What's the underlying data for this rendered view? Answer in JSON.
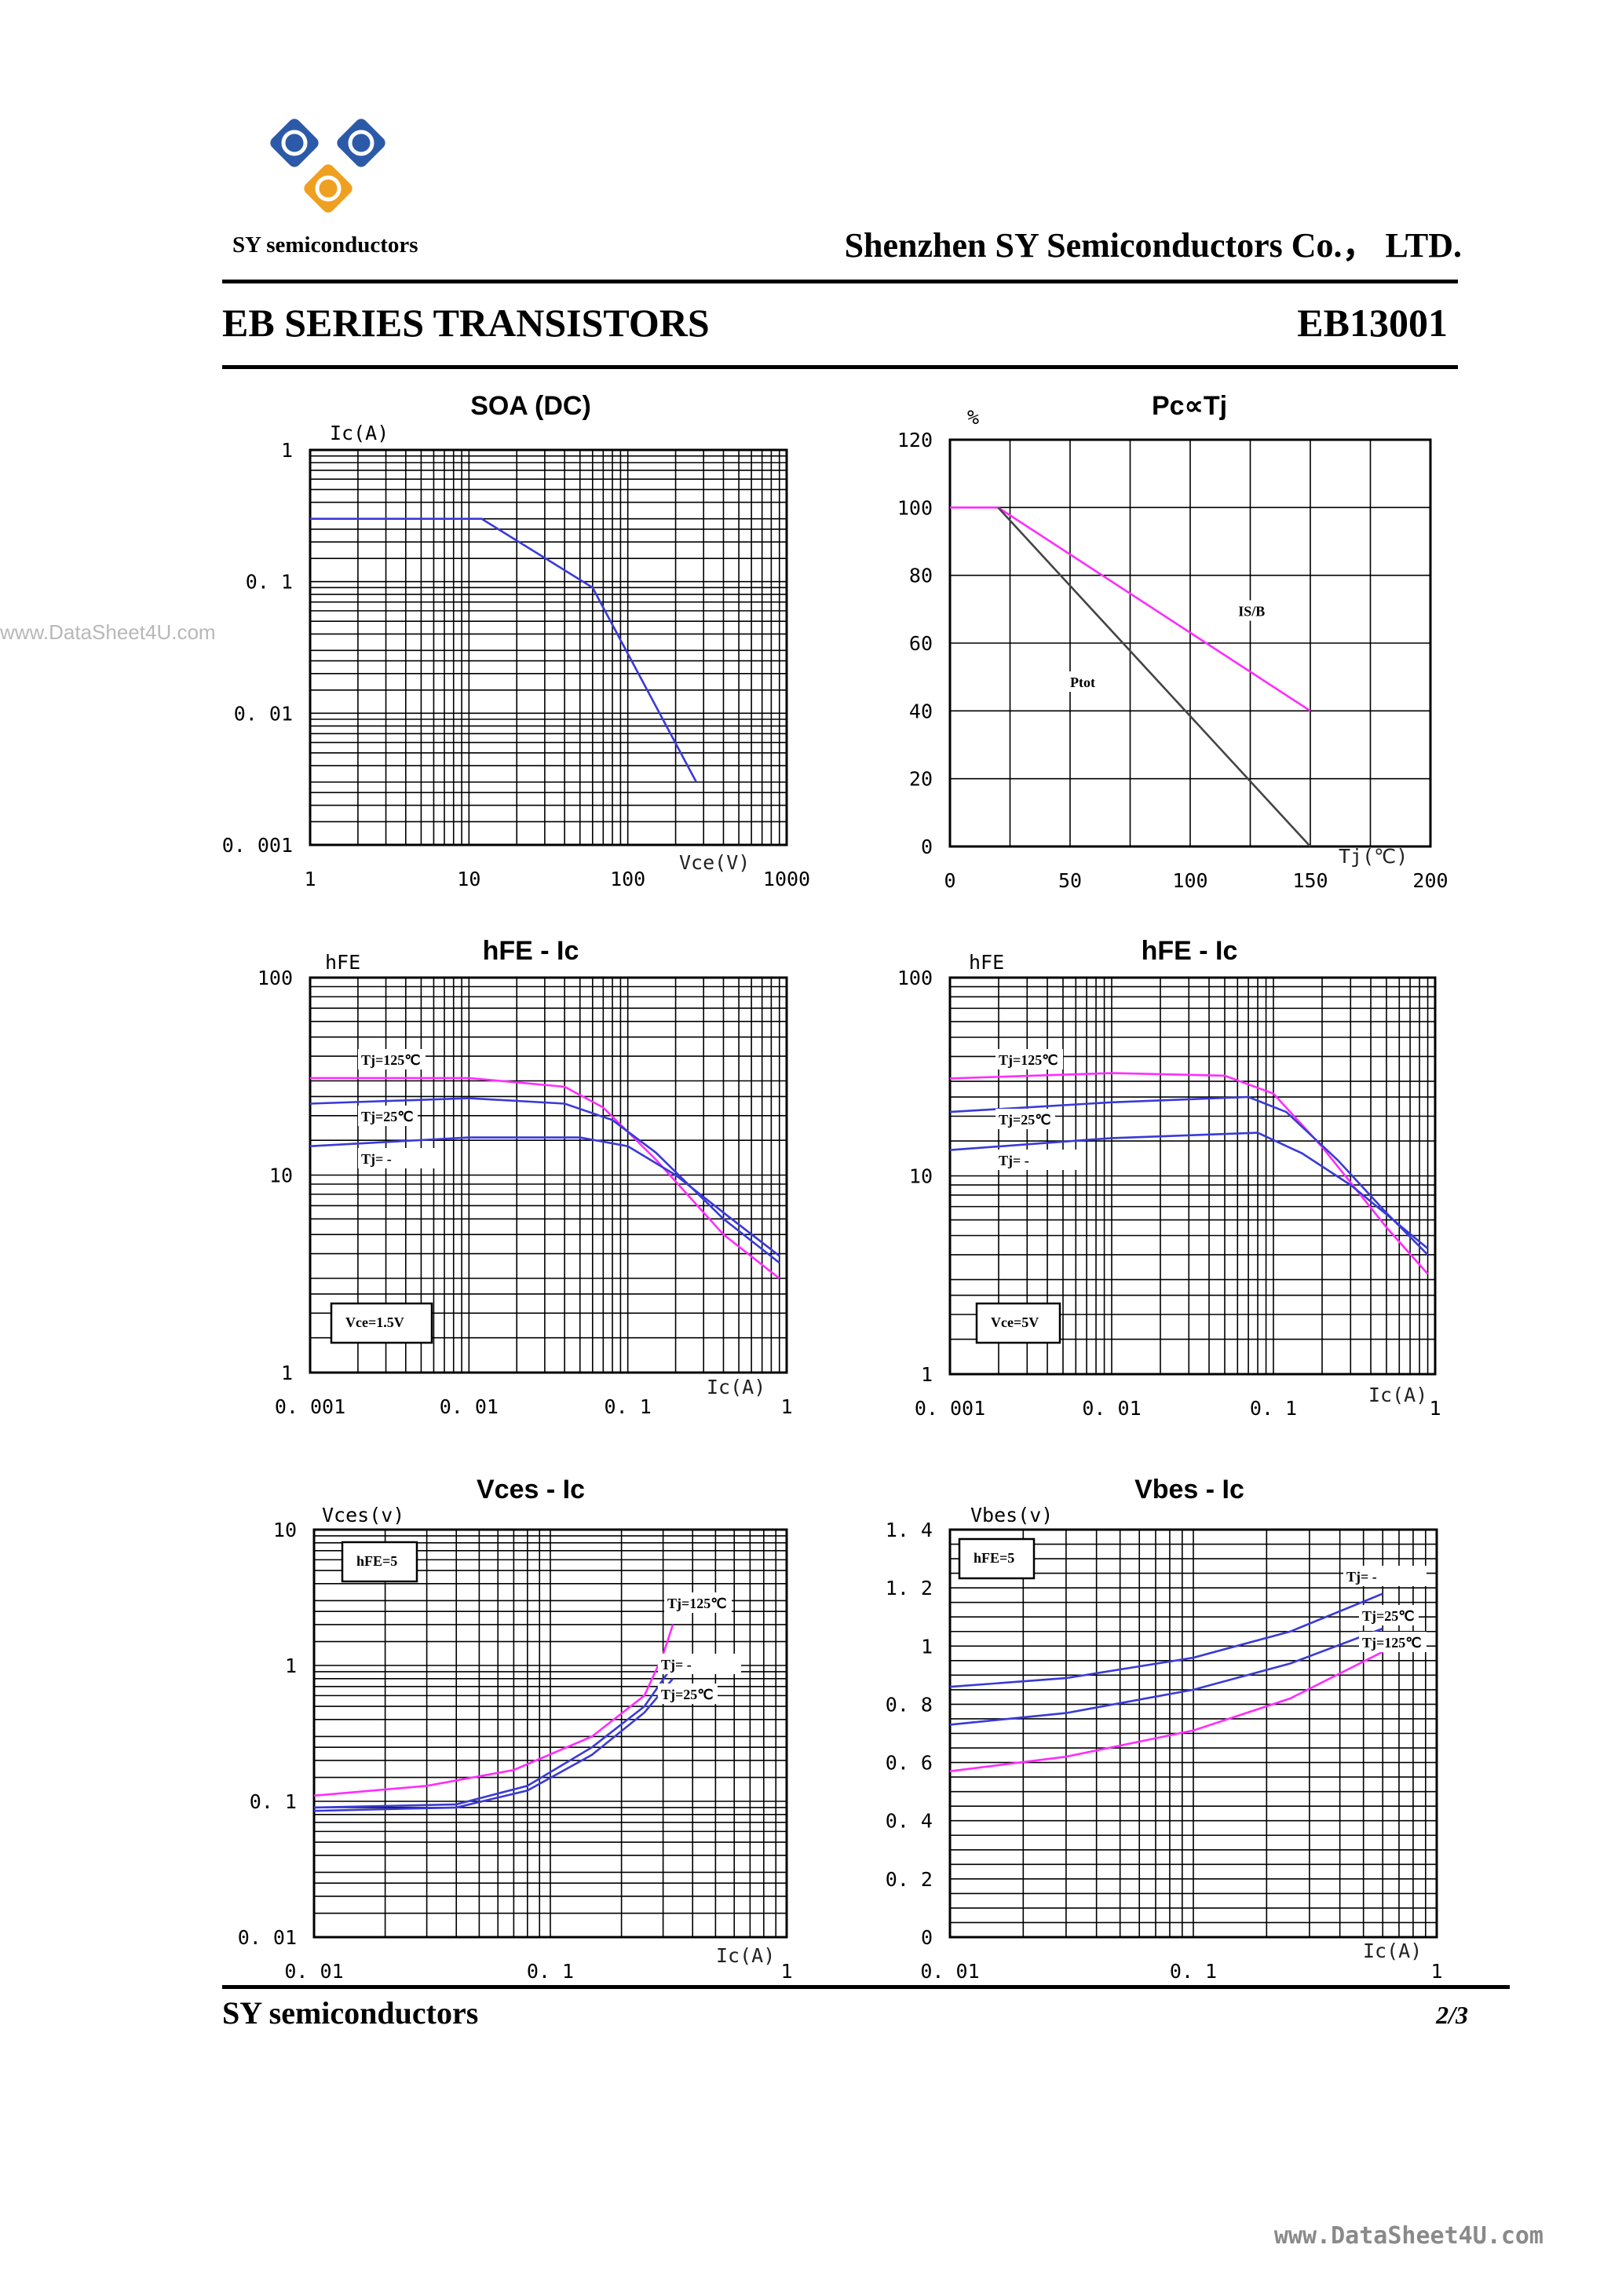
{
  "header": {
    "logo_text": "SY semiconductors",
    "company": "Shenzhen SY Semiconductors Co.， LTD.",
    "series": "EB SERIES TRANSISTORS",
    "part_number": "EB13001"
  },
  "watermark": {
    "left": "www.DataSheet4U.com",
    "right": "www.DataSheet4U.com"
  },
  "footer": {
    "left": "SY semiconductors",
    "page": "2/3"
  },
  "colors": {
    "blue": "#3a3ad8",
    "magenta": "#ff2cff",
    "dark": "#444444",
    "logo_blue": "#2c5aa8",
    "logo_orange": "#f0a020"
  },
  "chart_data": [
    {
      "id": "soa",
      "type": "line",
      "title": "SOA (DC)",
      "x_scale": "log",
      "y_scale": "log",
      "xlim": [
        1,
        1000
      ],
      "ylim": [
        0.001,
        1
      ],
      "xlabel": "Vce(V)",
      "ylabel": "Ic(A)",
      "x_ticks": [
        {
          "v": 1,
          "t": "1"
        },
        {
          "v": 10,
          "t": "10"
        },
        {
          "v": 100,
          "t": "100"
        },
        {
          "v": 1000,
          "t": "1000"
        }
      ],
      "y_ticks": [
        {
          "v": 1,
          "t": "1"
        },
        {
          "v": 0.1,
          "t": "0. 1"
        },
        {
          "v": 0.01,
          "t": "0. 01"
        },
        {
          "v": 0.001,
          "t": "0. 001"
        }
      ],
      "series": [
        {
          "name": "SOA",
          "color": "#3a3ad8",
          "points": [
            [
              1,
              0.3
            ],
            [
              12,
              0.3
            ],
            [
              60,
              0.09
            ],
            [
              270,
              0.003
            ]
          ]
        }
      ],
      "notes": []
    },
    {
      "id": "pc_tj",
      "type": "line",
      "title": "Pc∝Tj",
      "x_scale": "linear",
      "y_scale": "linear",
      "xlim": [
        0,
        200
      ],
      "ylim": [
        0,
        120
      ],
      "xlabel": "Tj(℃)",
      "ylabel": "%",
      "x_ticks": [
        {
          "v": 0,
          "t": "0"
        },
        {
          "v": 50,
          "t": "50"
        },
        {
          "v": 100,
          "t": "100"
        },
        {
          "v": 150,
          "t": "150"
        },
        {
          "v": 200,
          "t": "200"
        }
      ],
      "y_ticks": [
        {
          "v": 0,
          "t": "0"
        },
        {
          "v": 20,
          "t": "20"
        },
        {
          "v": 40,
          "t": "40"
        },
        {
          "v": 60,
          "t": "60"
        },
        {
          "v": 80,
          "t": "80"
        },
        {
          "v": 100,
          "t": "100"
        },
        {
          "v": 120,
          "t": "120"
        }
      ],
      "series": [
        {
          "name": "IS/B",
          "color": "#ff2cff",
          "points": [
            [
              0,
              100
            ],
            [
              20,
              100
            ],
            [
              150,
              40
            ]
          ]
        },
        {
          "name": "Ptot",
          "color": "#444444",
          "points": [
            [
              20,
              100
            ],
            [
              150,
              0
            ]
          ]
        }
      ],
      "notes": [
        {
          "text": "IS/B",
          "x": 120,
          "y": 68
        },
        {
          "text": "Ptot",
          "x": 50,
          "y": 47
        }
      ]
    },
    {
      "id": "hfe_ic_1",
      "type": "line",
      "title": "hFE - Ic",
      "x_scale": "log",
      "y_scale": "log",
      "xlim": [
        0.001,
        1
      ],
      "ylim": [
        1,
        100
      ],
      "xlabel": "Ic(A)",
      "ylabel": "hFE",
      "x_ticks": [
        {
          "v": 0.001,
          "t": "0. 001"
        },
        {
          "v": 0.01,
          "t": "0. 01"
        },
        {
          "v": 0.1,
          "t": "0. 1"
        },
        {
          "v": 1,
          "t": "1"
        }
      ],
      "y_ticks": [
        {
          "v": 1,
          "t": "1"
        },
        {
          "v": 10,
          "t": "10"
        },
        {
          "v": 100,
          "t": "100"
        }
      ],
      "series": [
        {
          "name": "Tj=125℃",
          "color": "#ff2cff",
          "points": [
            [
              0.001,
              31
            ],
            [
              0.01,
              31
            ],
            [
              0.04,
              28
            ],
            [
              0.07,
              22
            ],
            [
              0.15,
              12
            ],
            [
              0.4,
              5
            ],
            [
              0.9,
              3
            ]
          ]
        },
        {
          "name": "Tj=25℃",
          "color": "#3a3ad8",
          "points": [
            [
              0.001,
              23
            ],
            [
              0.01,
              24.5
            ],
            [
              0.04,
              23
            ],
            [
              0.08,
              19
            ],
            [
              0.15,
              13
            ],
            [
              0.4,
              6
            ],
            [
              0.9,
              3.6
            ]
          ]
        },
        {
          "name": "Tj=",
          "color": "#3a3ad8",
          "points": [
            [
              0.001,
              14
            ],
            [
              0.01,
              15.5
            ],
            [
              0.05,
              15.5
            ],
            [
              0.1,
              14
            ],
            [
              0.2,
              10
            ],
            [
              0.45,
              6
            ],
            [
              0.9,
              3.9
            ]
          ]
        }
      ],
      "notes": [
        {
          "text": "Tj=125℃"
        },
        {
          "text": "Tj=25℃"
        },
        {
          "text": "Tj=     -"
        },
        {
          "text": "Vce=1.5V"
        }
      ]
    },
    {
      "id": "hfe_ic_2",
      "type": "line",
      "title": "hFE - Ic",
      "x_scale": "log",
      "y_scale": "log",
      "xlim": [
        0.001,
        1
      ],
      "ylim": [
        1,
        100
      ],
      "xlabel": "Ic(A)",
      "ylabel": "hFE",
      "x_ticks": [
        {
          "v": 0.001,
          "t": "0. 001"
        },
        {
          "v": 0.01,
          "t": "0. 01"
        },
        {
          "v": 0.1,
          "t": "0. 1"
        },
        {
          "v": 1,
          "t": "1"
        }
      ],
      "y_ticks": [
        {
          "v": 1,
          "t": "1"
        },
        {
          "v": 10,
          "t": "10"
        },
        {
          "v": 100,
          "t": "100"
        }
      ],
      "series": [
        {
          "name": "Tj=125℃",
          "color": "#ff2cff",
          "points": [
            [
              0.001,
              31
            ],
            [
              0.01,
              33
            ],
            [
              0.05,
              32
            ],
            [
              0.1,
              26
            ],
            [
              0.2,
              14
            ],
            [
              0.5,
              5.5
            ],
            [
              0.9,
              3.2
            ]
          ]
        },
        {
          "name": "Tj=25℃",
          "color": "#3a3ad8",
          "points": [
            [
              0.001,
              21
            ],
            [
              0.01,
              23.5
            ],
            [
              0.07,
              25
            ],
            [
              0.12,
              21
            ],
            [
              0.25,
              12
            ],
            [
              0.5,
              6.5
            ],
            [
              0.9,
              4
            ]
          ]
        },
        {
          "name": "Tj=",
          "color": "#3a3ad8",
          "points": [
            [
              0.001,
              13.5
            ],
            [
              0.01,
              15.5
            ],
            [
              0.08,
              16.5
            ],
            [
              0.15,
              13
            ],
            [
              0.3,
              9
            ],
            [
              0.55,
              6
            ],
            [
              0.9,
              4.3
            ]
          ]
        }
      ],
      "notes": [
        {
          "text": "Tj=125℃"
        },
        {
          "text": "Tj=25℃"
        },
        {
          "text": "Tj=     -"
        },
        {
          "text": "Vce=5V"
        }
      ]
    },
    {
      "id": "vces_ic",
      "type": "line",
      "title": "Vces - Ic",
      "x_scale": "log",
      "y_scale": "log",
      "xlim": [
        0.01,
        1
      ],
      "ylim": [
        0.01,
        10
      ],
      "xlabel": "Ic(A)",
      "ylabel": "Vces(v)",
      "x_ticks": [
        {
          "v": 0.01,
          "t": "0. 01"
        },
        {
          "v": 0.1,
          "t": "0. 1"
        },
        {
          "v": 1,
          "t": "1"
        }
      ],
      "y_ticks": [
        {
          "v": 0.01,
          "t": "0. 01"
        },
        {
          "v": 0.1,
          "t": "0. 1"
        },
        {
          "v": 1,
          "t": "1"
        },
        {
          "v": 10,
          "t": "10"
        }
      ],
      "series": [
        {
          "name": "Tj=125℃",
          "color": "#ff2cff",
          "points": [
            [
              0.01,
              0.11
            ],
            [
              0.03,
              0.13
            ],
            [
              0.07,
              0.17
            ],
            [
              0.15,
              0.3
            ],
            [
              0.25,
              0.6
            ],
            [
              0.3,
              1.2
            ],
            [
              0.33,
              2.0
            ]
          ]
        },
        {
          "name": "Tj=",
          "color": "#3a3ad8",
          "points": [
            [
              0.01,
              0.09
            ],
            [
              0.04,
              0.095
            ],
            [
              0.08,
              0.13
            ],
            [
              0.15,
              0.25
            ],
            [
              0.25,
              0.5
            ],
            [
              0.33,
              1.0
            ]
          ]
        },
        {
          "name": "Tj=25℃",
          "color": "#3a3ad8",
          "points": [
            [
              0.01,
              0.085
            ],
            [
              0.04,
              0.09
            ],
            [
              0.08,
              0.12
            ],
            [
              0.15,
              0.22
            ],
            [
              0.25,
              0.45
            ],
            [
              0.33,
              0.8
            ]
          ]
        }
      ],
      "notes": [
        {
          "text": "hFE=5"
        },
        {
          "text": "Tj=125℃"
        },
        {
          "text": "Tj=     -"
        },
        {
          "text": "Tj=25℃"
        }
      ]
    },
    {
      "id": "vbes_ic",
      "type": "line",
      "title": "Vbes - Ic",
      "x_scale": "log",
      "y_scale": "linear",
      "xlim": [
        0.01,
        1
      ],
      "ylim": [
        0,
        1.4
      ],
      "xlabel": "Ic(A)",
      "ylabel": "Vbes(v)",
      "x_ticks": [
        {
          "v": 0.01,
          "t": "0. 01"
        },
        {
          "v": 0.1,
          "t": "0. 1"
        },
        {
          "v": 1,
          "t": "1"
        }
      ],
      "y_ticks": [
        {
          "v": 0,
          "t": "0"
        },
        {
          "v": 0.2,
          "t": "0. 2"
        },
        {
          "v": 0.4,
          "t": "0. 4"
        },
        {
          "v": 0.6,
          "t": "0. 6"
        },
        {
          "v": 0.8,
          "t": "0. 8"
        },
        {
          "v": 1.0,
          "t": "1"
        },
        {
          "v": 1.2,
          "t": "1. 2"
        },
        {
          "v": 1.4,
          "t": "1. 4"
        }
      ],
      "series": [
        {
          "name": "Tj=",
          "color": "#3a3ad8",
          "points": [
            [
              0.01,
              0.86
            ],
            [
              0.03,
              0.89
            ],
            [
              0.1,
              0.96
            ],
            [
              0.25,
              1.05
            ],
            [
              0.6,
              1.18
            ]
          ]
        },
        {
          "name": "Tj=25℃",
          "color": "#3a3ad8",
          "points": [
            [
              0.01,
              0.73
            ],
            [
              0.03,
              0.77
            ],
            [
              0.1,
              0.85
            ],
            [
              0.25,
              0.94
            ],
            [
              0.6,
              1.06
            ]
          ]
        },
        {
          "name": "Tj=125℃",
          "color": "#ff2cff",
          "points": [
            [
              0.01,
              0.57
            ],
            [
              0.03,
              0.62
            ],
            [
              0.1,
              0.71
            ],
            [
              0.25,
              0.82
            ],
            [
              0.6,
              0.98
            ]
          ]
        }
      ],
      "notes": [
        {
          "text": "hFE=5"
        },
        {
          "text": "Tj=     -"
        },
        {
          "text": "Tj=25℃"
        },
        {
          "text": "Tj=125℃"
        }
      ]
    }
  ]
}
